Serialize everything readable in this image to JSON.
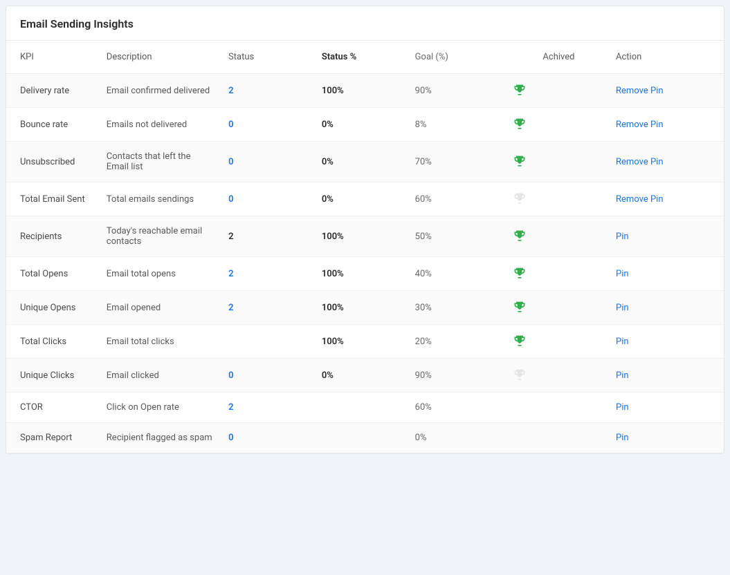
{
  "card": {
    "title": "Email Sending Insights"
  },
  "columns": {
    "kpi": "KPI",
    "description": "Description",
    "status": "Status",
    "status_pct": "Status %",
    "goal": "Goal (%)",
    "achieved": "Achived",
    "action": "Action"
  },
  "colors": {
    "link": "#1a73e8",
    "trophy_achieved": "#2fae4e",
    "trophy_not": "#e5e5e5"
  },
  "rows": [
    {
      "kpi": "Delivery rate",
      "description": "Email confirmed delivered",
      "status": "2",
      "status_style": "link",
      "status_pct": "100%",
      "goal": "90%",
      "achieved": true,
      "action": "Remove Pin"
    },
    {
      "kpi": "Bounce rate",
      "description": "Emails not delivered",
      "status": "0",
      "status_style": "link",
      "status_pct": "0%",
      "goal": "8%",
      "achieved": true,
      "action": "Remove Pin"
    },
    {
      "kpi": "Unsubscribed",
      "description": "Contacts that left the Email list",
      "status": "0",
      "status_style": "link",
      "status_pct": "0%",
      "goal": "70%",
      "achieved": true,
      "action": "Remove Pin"
    },
    {
      "kpi": "Total Email Sent",
      "description": "Total emails sendings",
      "status": "0",
      "status_style": "link",
      "status_pct": "0%",
      "goal": "60%",
      "achieved": false,
      "action": "Remove Pin"
    },
    {
      "kpi": "Recipients",
      "description": "Today's reachable email contacts",
      "status": "2",
      "status_style": "bold",
      "status_pct": "100%",
      "goal": "50%",
      "achieved": true,
      "action": "Pin"
    },
    {
      "kpi": "Total Opens",
      "description": "Email total opens",
      "status": "2",
      "status_style": "link",
      "status_pct": "100%",
      "goal": "40%",
      "achieved": true,
      "action": "Pin"
    },
    {
      "kpi": "Unique Opens",
      "description": "Email opened",
      "status": "2",
      "status_style": "link",
      "status_pct": "100%",
      "goal": "30%",
      "achieved": true,
      "action": "Pin"
    },
    {
      "kpi": "Total Clicks",
      "description": "Email total clicks",
      "status": "",
      "status_style": "none",
      "status_pct": "100%",
      "goal": "20%",
      "achieved": true,
      "action": "Pin"
    },
    {
      "kpi": "Unique Clicks",
      "description": "Email clicked",
      "status": "0",
      "status_style": "link",
      "status_pct": "0%",
      "goal": "90%",
      "achieved": false,
      "action": "Pin"
    },
    {
      "kpi": "CTOR",
      "description": "Click on Open rate",
      "status": "2",
      "status_style": "link",
      "status_pct": "",
      "goal": "60%",
      "achieved": null,
      "action": "Pin"
    },
    {
      "kpi": "Spam Report",
      "description": "Recipient flagged as spam",
      "status": "0",
      "status_style": "link",
      "status_pct": "",
      "goal": "0%",
      "achieved": null,
      "action": "Pin"
    }
  ]
}
